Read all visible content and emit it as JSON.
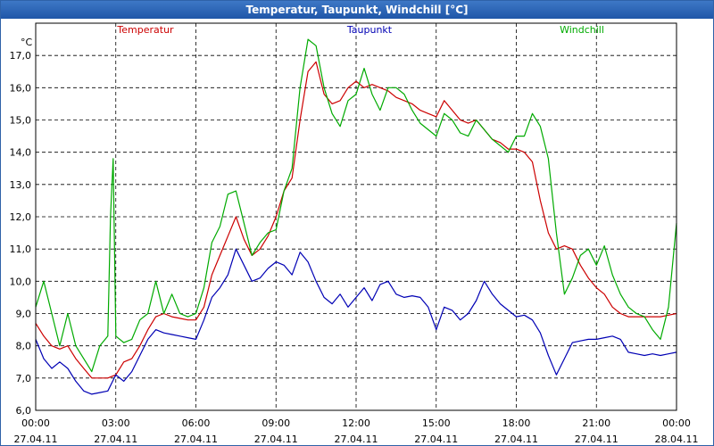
{
  "window": {
    "title": "Temperatur, Taupunkt, Windchill [°C]"
  },
  "chart_data": {
    "type": "line",
    "title": "Temperatur, Taupunkt, Windchill [°C]",
    "ylabel": "°C",
    "xlabel": "",
    "ylim": [
      6.0,
      18.0
    ],
    "xlim": [
      0,
      24
    ],
    "grid": true,
    "legend_position": "top",
    "y_ticks": [
      "6,0",
      "7,0",
      "8,0",
      "9,0",
      "10,0",
      "11,0",
      "12,0",
      "13,0",
      "14,0",
      "15,0",
      "16,0",
      "17,0"
    ],
    "x_ticks": [
      {
        "x": 0,
        "time": "00:00",
        "date": "27.04.11"
      },
      {
        "x": 3,
        "time": "03:00",
        "date": "27.04.11"
      },
      {
        "x": 6,
        "time": "06:00",
        "date": "27.04.11"
      },
      {
        "x": 9,
        "time": "09:00",
        "date": "27.04.11"
      },
      {
        "x": 12,
        "time": "12:00",
        "date": "27.04.11"
      },
      {
        "x": 15,
        "time": "15:00",
        "date": "27.04.11"
      },
      {
        "x": 18,
        "time": "18:00",
        "date": "27.04.11"
      },
      {
        "x": 21,
        "time": "21:00",
        "date": "27.04.11"
      },
      {
        "x": 24,
        "time": "00:00",
        "date": "28.04.11"
      }
    ],
    "series": [
      {
        "name": "Temperatur",
        "color": "#cc0000",
        "x": [
          0,
          0.3,
          0.6,
          0.9,
          1.2,
          1.5,
          1.8,
          2.1,
          2.4,
          2.7,
          3.0,
          3.3,
          3.6,
          3.9,
          4.2,
          4.5,
          4.8,
          5.1,
          5.4,
          5.7,
          6.0,
          6.3,
          6.6,
          6.9,
          7.2,
          7.5,
          7.8,
          8.1,
          8.4,
          8.7,
          9.0,
          9.3,
          9.6,
          9.9,
          10.2,
          10.5,
          10.8,
          11.1,
          11.4,
          11.7,
          12.0,
          12.3,
          12.6,
          12.9,
          13.2,
          13.5,
          13.8,
          14.1,
          14.4,
          14.7,
          15.0,
          15.3,
          15.6,
          15.9,
          16.2,
          16.5,
          16.8,
          17.1,
          17.4,
          17.7,
          18.0,
          18.3,
          18.6,
          18.9,
          19.2,
          19.5,
          19.8,
          20.1,
          20.4,
          20.7,
          21.0,
          21.3,
          21.6,
          21.9,
          22.2,
          22.5,
          22.8,
          23.1,
          23.4,
          23.7,
          24.0
        ],
        "values": [
          8.7,
          8.3,
          8.0,
          7.9,
          8.0,
          7.6,
          7.3,
          7.0,
          7.0,
          7.0,
          7.1,
          7.5,
          7.6,
          8.0,
          8.5,
          8.9,
          9.0,
          8.9,
          8.85,
          8.8,
          8.8,
          9.2,
          10.2,
          10.8,
          11.4,
          12.0,
          11.3,
          10.8,
          11.0,
          11.4,
          12.0,
          12.8,
          13.2,
          15.0,
          16.5,
          16.8,
          15.8,
          15.5,
          15.6,
          16.0,
          16.2,
          16.0,
          16.1,
          16.0,
          15.9,
          15.7,
          15.6,
          15.5,
          15.3,
          15.2,
          15.1,
          15.6,
          15.3,
          15.0,
          14.9,
          15.0,
          14.7,
          14.4,
          14.3,
          14.1,
          14.1,
          14.0,
          13.7,
          12.5,
          11.5,
          11.0,
          11.1,
          11.0,
          10.5,
          10.1,
          9.8,
          9.6,
          9.2,
          9.0,
          8.9,
          8.9,
          8.9,
          8.9,
          8.9,
          8.95,
          9.0
        ]
      },
      {
        "name": "Taupunkt",
        "color": "#0000b4",
        "x": [
          0,
          0.3,
          0.6,
          0.9,
          1.2,
          1.5,
          1.8,
          2.1,
          2.4,
          2.7,
          3.0,
          3.3,
          3.6,
          3.9,
          4.2,
          4.5,
          4.8,
          5.1,
          5.4,
          5.7,
          6.0,
          6.3,
          6.6,
          6.9,
          7.2,
          7.5,
          7.8,
          8.1,
          8.4,
          8.7,
          9.0,
          9.3,
          9.6,
          9.9,
          10.2,
          10.5,
          10.8,
          11.1,
          11.4,
          11.7,
          12.0,
          12.3,
          12.6,
          12.9,
          13.2,
          13.5,
          13.8,
          14.1,
          14.4,
          14.7,
          15.0,
          15.3,
          15.6,
          15.9,
          16.2,
          16.5,
          16.8,
          17.1,
          17.4,
          17.7,
          18.0,
          18.3,
          18.6,
          18.9,
          19.2,
          19.5,
          19.8,
          20.1,
          20.4,
          20.7,
          21.0,
          21.3,
          21.6,
          21.9,
          22.2,
          22.5,
          22.8,
          23.1,
          23.4,
          23.7,
          24.0
        ],
        "values": [
          8.2,
          7.6,
          7.3,
          7.5,
          7.3,
          6.9,
          6.6,
          6.5,
          6.55,
          6.6,
          7.1,
          6.9,
          7.2,
          7.7,
          8.2,
          8.5,
          8.4,
          8.35,
          8.3,
          8.25,
          8.2,
          8.8,
          9.5,
          9.8,
          10.2,
          11.0,
          10.5,
          10.0,
          10.1,
          10.4,
          10.6,
          10.5,
          10.2,
          10.9,
          10.6,
          10.0,
          9.5,
          9.3,
          9.6,
          9.2,
          9.5,
          9.8,
          9.4,
          9.9,
          10.0,
          9.6,
          9.5,
          9.55,
          9.5,
          9.2,
          8.5,
          9.2,
          9.1,
          8.8,
          9.0,
          9.4,
          10.0,
          9.6,
          9.3,
          9.1,
          8.9,
          8.95,
          8.8,
          8.4,
          7.7,
          7.1,
          7.6,
          8.1,
          8.15,
          8.2,
          8.2,
          8.25,
          8.3,
          8.2,
          7.8,
          7.75,
          7.7,
          7.75,
          7.7,
          7.75,
          7.8
        ]
      },
      {
        "name": "Windchill",
        "color": "#00aa00",
        "x": [
          0,
          0.3,
          0.6,
          0.9,
          1.2,
          1.5,
          1.8,
          2.1,
          2.4,
          2.7,
          2.8,
          2.9,
          3.0,
          3.3,
          3.6,
          3.9,
          4.2,
          4.5,
          4.8,
          5.1,
          5.4,
          5.7,
          6.0,
          6.3,
          6.6,
          6.9,
          7.2,
          7.5,
          7.8,
          8.1,
          8.4,
          8.7,
          9.0,
          9.3,
          9.6,
          9.9,
          10.2,
          10.5,
          10.8,
          11.1,
          11.4,
          11.7,
          12.0,
          12.3,
          12.6,
          12.9,
          13.2,
          13.5,
          13.8,
          14.1,
          14.4,
          14.7,
          15.0,
          15.3,
          15.6,
          15.9,
          16.2,
          16.5,
          16.8,
          17.1,
          17.4,
          17.7,
          18.0,
          18.3,
          18.6,
          18.9,
          19.2,
          19.5,
          19.8,
          20.1,
          20.4,
          20.7,
          21.0,
          21.3,
          21.6,
          21.9,
          22.2,
          22.5,
          22.8,
          23.1,
          23.4,
          23.7,
          24.0
        ],
        "values": [
          9.2,
          10.0,
          9.0,
          8.0,
          9.0,
          8.0,
          7.6,
          7.2,
          8.0,
          8.3,
          12.0,
          13.8,
          8.3,
          8.1,
          8.2,
          8.8,
          9.0,
          10.0,
          9.0,
          9.6,
          9.0,
          8.9,
          9.0,
          9.8,
          11.2,
          11.7,
          12.7,
          12.8,
          11.8,
          10.8,
          11.2,
          11.5,
          11.6,
          12.8,
          13.5,
          16.0,
          17.5,
          17.3,
          16.0,
          15.2,
          14.8,
          15.6,
          15.8,
          16.6,
          15.8,
          15.3,
          16.0,
          16.0,
          15.8,
          15.3,
          14.9,
          14.7,
          14.5,
          15.2,
          15.0,
          14.6,
          14.5,
          15.0,
          14.7,
          14.4,
          14.2,
          14.0,
          14.5,
          14.5,
          15.2,
          14.8,
          13.8,
          11.5,
          9.6,
          10.1,
          10.8,
          11.0,
          10.5,
          11.1,
          10.2,
          9.6,
          9.2,
          9.0,
          8.9,
          8.5,
          8.2,
          9.2,
          11.8
        ]
      }
    ]
  }
}
